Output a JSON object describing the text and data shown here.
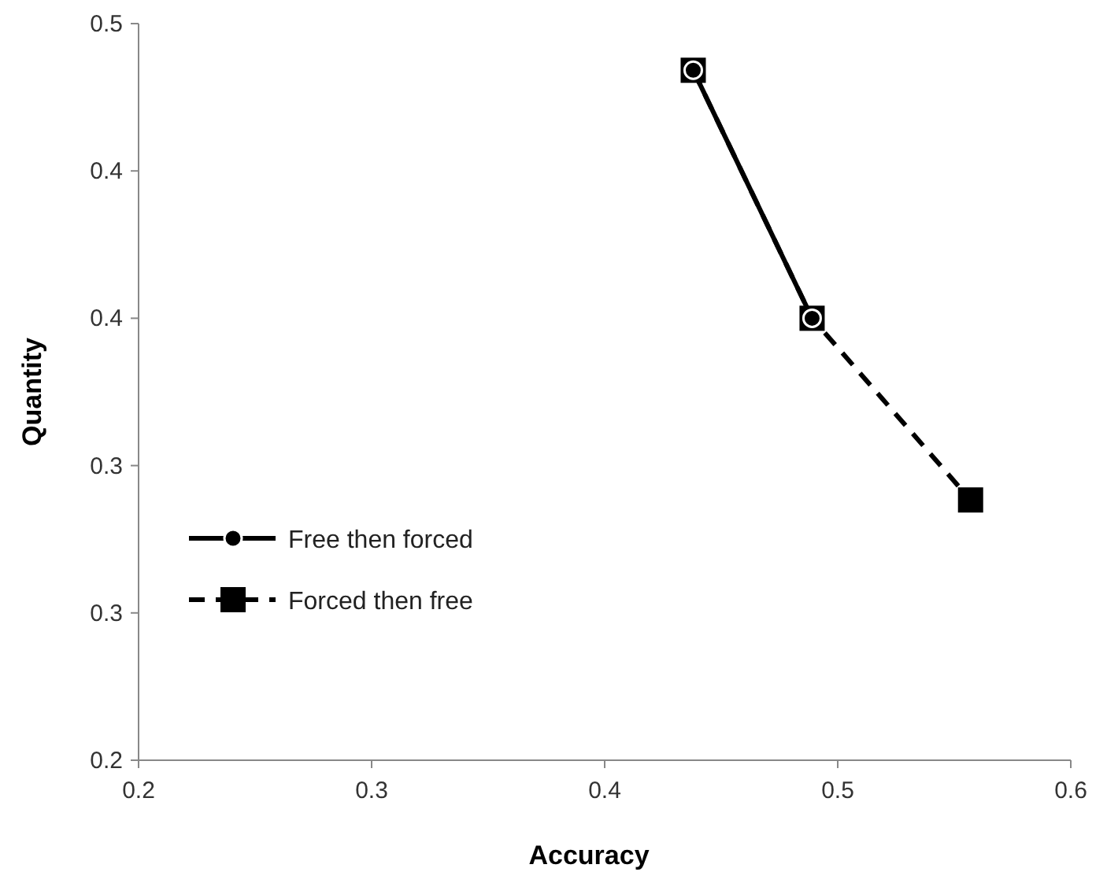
{
  "chart_data": {
    "type": "line",
    "xlabel": "Accuracy",
    "ylabel": "Quantity",
    "xlim": [
      0.2,
      0.6
    ],
    "xticks": [
      0.2,
      0.3,
      0.4,
      0.5,
      0.6
    ],
    "ylim": [
      0.2,
      0.5
    ],
    "yticks": [
      0.2,
      {
        "value": 0.26,
        "label": "0.3"
      },
      {
        "value": 0.32,
        "label": "0.3"
      },
      {
        "value": 0.38,
        "label": "0.4"
      },
      {
        "value": 0.44,
        "label": "0.4"
      },
      0.5
    ],
    "grid": false,
    "legend": "left",
    "series": [
      {
        "name": "Forced then free",
        "color": "#000000",
        "x": [
          0.438,
          0.489,
          0.557
        ],
        "values": [
          0.481,
          0.38,
          0.306
        ],
        "marker": "square",
        "line_style": "dashed"
      },
      {
        "name": "Free then forced",
        "color": "#000000",
        "x": [
          0.438,
          0.489
        ],
        "values": [
          0.481,
          0.38
        ],
        "marker": "circle",
        "line_style": "solid"
      }
    ]
  }
}
